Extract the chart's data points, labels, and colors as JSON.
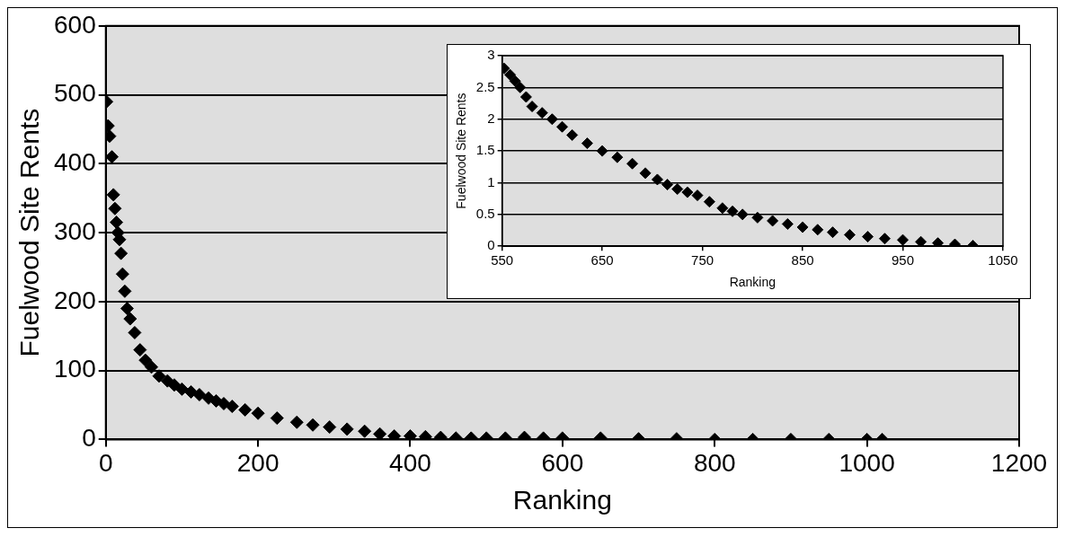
{
  "chart_data": [
    {
      "type": "scatter",
      "xlabel": "Ranking",
      "ylabel": "Fuelwood Site Rents",
      "xlim": [
        0,
        1200
      ],
      "ylim": [
        0,
        600
      ],
      "xticks": [
        0,
        200,
        400,
        600,
        800,
        1000,
        1200
      ],
      "yticks": [
        0,
        100,
        200,
        300,
        400,
        500,
        600
      ],
      "grid": "y",
      "marker": "diamond",
      "series": [
        {
          "color": "#000000",
          "x": [
            1,
            3,
            5,
            8,
            10,
            12,
            14,
            16,
            18,
            20,
            22,
            25,
            28,
            32,
            38,
            45,
            52,
            60,
            70,
            81,
            90,
            100,
            112,
            123,
            135,
            145,
            155,
            166,
            183,
            200,
            225,
            251,
            272,
            294,
            317,
            340,
            360,
            379,
            400,
            420,
            440,
            460,
            480,
            500,
            525,
            550,
            575,
            600,
            650,
            700,
            750,
            800,
            850,
            900,
            950,
            1000,
            1020
          ],
          "values": [
            490,
            455,
            440,
            410,
            355,
            335,
            315,
            300,
            290,
            270,
            240,
            215,
            190,
            175,
            155,
            130,
            115,
            105,
            92,
            85,
            79,
            73,
            69,
            65,
            60,
            56,
            52,
            48,
            43,
            38,
            31,
            25,
            21,
            18,
            15,
            12,
            8,
            5,
            5,
            4,
            3,
            2,
            2,
            2,
            2,
            3,
            2,
            2,
            2,
            1,
            1,
            0,
            0,
            0,
            0,
            0,
            0
          ]
        }
      ]
    },
    {
      "type": "scatter",
      "xlabel": "Ranking",
      "ylabel": "Fuelwood Site Rents",
      "xlim": [
        550,
        1050
      ],
      "ylim": [
        0,
        3
      ],
      "xticks": [
        550,
        650,
        750,
        850,
        950,
        1050
      ],
      "yticks": [
        0,
        0.5,
        1,
        1.5,
        2,
        2.5,
        3
      ],
      "grid": "y",
      "marker": "diamond",
      "series": [
        {
          "color": "#000000",
          "x": [
            552,
            558,
            563,
            568,
            574,
            580,
            590,
            600,
            610,
            620,
            635,
            650,
            665,
            680,
            693,
            705,
            715,
            725,
            735,
            745,
            757,
            770,
            780,
            790,
            805,
            820,
            835,
            850,
            865,
            880,
            897,
            915,
            932,
            950,
            968,
            985,
            1002,
            1020
          ],
          "values": [
            2.8,
            2.7,
            2.6,
            2.5,
            2.35,
            2.2,
            2.1,
            2,
            1.88,
            1.75,
            1.62,
            1.5,
            1.4,
            1.3,
            1.15,
            1.05,
            0.97,
            0.9,
            0.85,
            0.8,
            0.7,
            0.6,
            0.55,
            0.5,
            0.45,
            0.4,
            0.35,
            0.3,
            0.26,
            0.22,
            0.18,
            0.15,
            0.12,
            0.1,
            0.07,
            0.05,
            0.03,
            0.01
          ]
        }
      ]
    }
  ]
}
